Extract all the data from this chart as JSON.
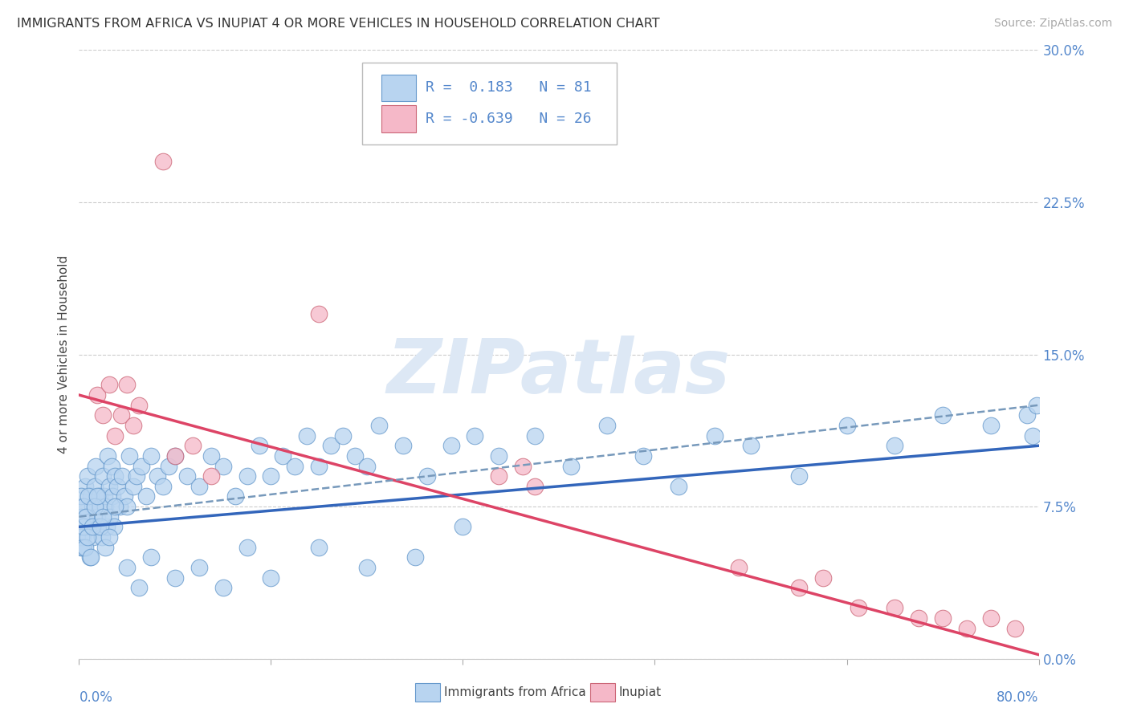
{
  "title": "IMMIGRANTS FROM AFRICA VS INUPIAT 4 OR MORE VEHICLES IN HOUSEHOLD CORRELATION CHART",
  "source": "Source: ZipAtlas.com",
  "ylabel": "4 or more Vehicles in Household",
  "ytick_vals": [
    0.0,
    7.5,
    15.0,
    22.5,
    30.0
  ],
  "xrange": [
    0,
    80
  ],
  "yrange": [
    0,
    30
  ],
  "legend1_R": "0.183",
  "legend1_N": "81",
  "legend2_R": "-0.639",
  "legend2_N": "26",
  "color_blue_fill": "#b8d4f0",
  "color_blue_edge": "#6699cc",
  "color_pink_fill": "#f5b8c8",
  "color_pink_edge": "#cc6677",
  "color_blue_line": "#3366bb",
  "color_pink_line": "#dd4466",
  "color_blue_text": "#5588cc",
  "color_watermark": "#dde8f5",
  "color_dashed": "#7799bb",
  "blue_scatter_x": [
    0.2,
    0.3,
    0.4,
    0.5,
    0.6,
    0.7,
    0.8,
    0.9,
    1.0,
    1.1,
    1.2,
    1.3,
    1.4,
    1.5,
    1.6,
    1.7,
    1.8,
    1.9,
    2.0,
    2.1,
    2.2,
    2.3,
    2.4,
    2.5,
    2.6,
    2.7,
    2.8,
    2.9,
    3.0,
    3.2,
    3.4,
    3.6,
    3.8,
    4.0,
    4.2,
    4.5,
    4.8,
    5.2,
    5.6,
    6.0,
    6.5,
    7.0,
    7.5,
    8.0,
    9.0,
    10.0,
    11.0,
    12.0,
    13.0,
    14.0,
    15.0,
    16.0,
    17.0,
    18.0,
    19.0,
    20.0,
    21.0,
    22.0,
    23.0,
    24.0,
    25.0,
    27.0,
    29.0,
    31.0,
    33.0,
    35.0,
    38.0,
    41.0,
    44.0,
    47.0,
    50.0,
    53.0,
    56.0,
    60.0,
    64.0,
    68.0,
    72.0,
    76.0,
    79.0,
    79.5,
    79.8
  ],
  "blue_scatter_y": [
    7.5,
    6.0,
    5.5,
    8.5,
    7.0,
    9.0,
    6.5,
    5.0,
    8.0,
    7.5,
    6.0,
    8.5,
    9.5,
    7.0,
    6.5,
    8.0,
    7.5,
    6.0,
    9.0,
    8.0,
    7.5,
    6.5,
    10.0,
    8.5,
    7.0,
    9.5,
    8.0,
    6.5,
    9.0,
    8.5,
    7.5,
    9.0,
    8.0,
    7.5,
    10.0,
    8.5,
    9.0,
    9.5,
    8.0,
    10.0,
    9.0,
    8.5,
    9.5,
    10.0,
    9.0,
    8.5,
    10.0,
    9.5,
    8.0,
    9.0,
    10.5,
    9.0,
    10.0,
    9.5,
    11.0,
    9.5,
    10.5,
    11.0,
    10.0,
    9.5,
    11.5,
    10.5,
    9.0,
    10.5,
    11.0,
    10.0,
    11.0,
    9.5,
    11.5,
    10.0,
    8.5,
    11.0,
    10.5,
    9.0,
    11.5,
    10.5,
    12.0,
    11.5,
    12.0,
    11.0,
    12.5
  ],
  "blue_scatter_extra_x": [
    0.15,
    0.15,
    0.15,
    0.2,
    0.2,
    0.3,
    0.35,
    0.4,
    0.5,
    0.55,
    0.7,
    0.8,
    1.0,
    1.1,
    1.3,
    1.5,
    1.8,
    2.0,
    2.2,
    2.5,
    3.0,
    4.0,
    5.0,
    6.0,
    8.0,
    10.0,
    12.0,
    14.0,
    16.0,
    20.0,
    24.0,
    28.0,
    32.0
  ],
  "blue_scatter_extra_y": [
    6.5,
    7.0,
    5.5,
    8.0,
    6.0,
    5.5,
    7.5,
    6.5,
    5.5,
    7.0,
    6.0,
    8.0,
    5.0,
    6.5,
    7.5,
    8.0,
    6.5,
    7.0,
    5.5,
    6.0,
    7.5,
    4.5,
    3.5,
    5.0,
    4.0,
    4.5,
    3.5,
    5.5,
    4.0,
    5.5,
    4.5,
    5.0,
    6.5
  ],
  "pink_scatter_x": [
    1.5,
    2.0,
    2.5,
    3.0,
    3.5,
    4.0,
    4.5,
    5.0,
    7.0,
    8.0,
    9.5,
    11.0,
    20.0,
    35.0,
    37.0,
    38.0,
    55.0,
    60.0,
    62.0,
    65.0,
    68.0,
    70.0,
    72.0,
    74.0,
    76.0,
    78.0
  ],
  "pink_scatter_y": [
    13.0,
    12.0,
    13.5,
    11.0,
    12.0,
    13.5,
    11.5,
    12.5,
    24.5,
    10.0,
    10.5,
    9.0,
    17.0,
    9.0,
    9.5,
    8.5,
    4.5,
    3.5,
    4.0,
    2.5,
    2.5,
    2.0,
    2.0,
    1.5,
    2.0,
    1.5
  ],
  "blue_line_x": [
    0,
    80
  ],
  "blue_line_y": [
    6.5,
    10.5
  ],
  "pink_line_x": [
    0,
    80
  ],
  "pink_line_y": [
    13.0,
    0.2
  ],
  "dashed_line_x": [
    0,
    80
  ],
  "dashed_line_y": [
    7.0,
    12.5
  ]
}
